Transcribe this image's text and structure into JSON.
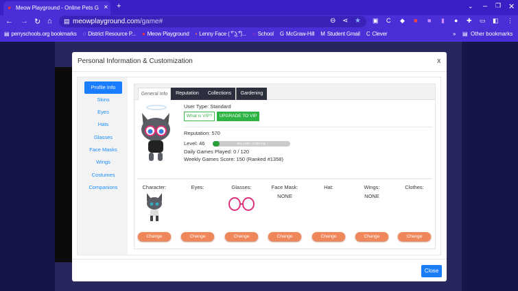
{
  "browser": {
    "tab_title": "Meow Playground - Online Pets G",
    "url_host": "meowplayground.com",
    "url_path": "/game#",
    "bookmarks": [
      "perryschools.org bookmarks",
      "District Resource P...",
      "Meow Playground",
      "Lenny Face ( ͡° ͜ʖ ͡°)...",
      "School",
      "McGraw-Hill",
      "Student Gmail",
      "Clever"
    ],
    "other_bookmarks": "Other bookmarks"
  },
  "modal": {
    "title": "Personal Information & Customization",
    "close_x": "x",
    "sidebar": [
      "Profile Info",
      "Skins",
      "Eyes",
      "Hats",
      "Glasses",
      "Face Masks",
      "Wings",
      "Costumes",
      "Companions"
    ],
    "tabs": [
      "General Info",
      "Reputation",
      "Collections",
      "Gardening"
    ],
    "user_type": "User Type: Standard",
    "what_is_vip": "What is VIP?",
    "upgrade": "UPGRADE TO VIP",
    "reputation": "Reputation: 570",
    "level": "Level: 46",
    "level_progress_percent": 9,
    "level_progress_text": "9% | 192 / 2,162 exp",
    "daily_games": "Daily Games Played: 0 / 120",
    "weekly_score": "Weekly Games Score: 150 (Ranked #1358)",
    "slots": [
      {
        "label": "Character:",
        "value": ""
      },
      {
        "label": "Eyes:",
        "value": ""
      },
      {
        "label": "Glasses:",
        "value": ""
      },
      {
        "label": "Face Mask:",
        "value": "NONE"
      },
      {
        "label": "Hat:",
        "value": ""
      },
      {
        "label": "Wings:",
        "value": "NONE"
      },
      {
        "label": "Clothes:",
        "value": ""
      }
    ],
    "change_label": "Change",
    "close_button": "Close"
  },
  "colors": {
    "browser": "#4a2fd6",
    "primary": "#1a7cff",
    "vip": "#2eb445",
    "change": "#f0875a"
  }
}
